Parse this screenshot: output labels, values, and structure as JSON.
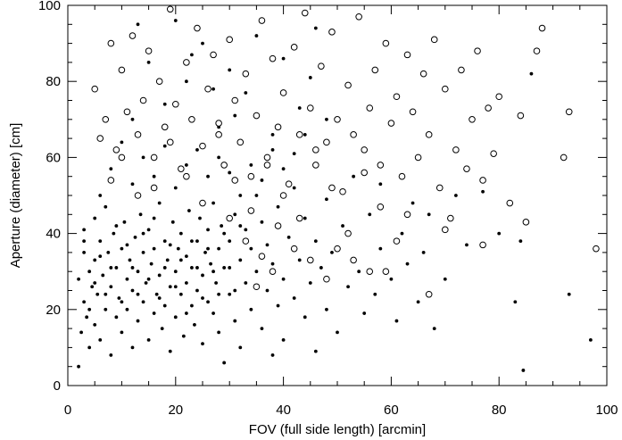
{
  "chart_data": {
    "type": "scatter",
    "xlabel": "FOV (full side length) [arcmin]",
    "ylabel": "Aperture (diameter) [cm]",
    "xlim": [
      0,
      100
    ],
    "ylim": [
      0,
      100
    ],
    "xticks": [
      0,
      20,
      40,
      60,
      80,
      100
    ],
    "yticks": [
      0,
      20,
      40,
      60,
      80,
      100
    ],
    "grid": false,
    "series": [
      {
        "marker": "filled-circle",
        "color": "#000000",
        "values": [
          [
            2,
            5
          ],
          [
            2,
            28
          ],
          [
            2.5,
            14
          ],
          [
            3,
            22
          ],
          [
            3,
            35
          ],
          [
            3,
            41
          ],
          [
            3.5,
            18
          ],
          [
            4,
            30
          ],
          [
            4,
            10
          ],
          [
            4.5,
            26
          ],
          [
            5,
            44
          ],
          [
            5,
            33
          ],
          [
            5,
            16
          ],
          [
            5.5,
            24
          ],
          [
            6,
            38
          ],
          [
            6,
            12
          ],
          [
            6.5,
            29
          ],
          [
            7,
            20
          ],
          [
            7,
            47
          ],
          [
            7.5,
            35
          ],
          [
            8,
            26
          ],
          [
            8,
            8
          ],
          [
            8.5,
            40
          ],
          [
            9,
            31
          ],
          [
            9,
            18
          ],
          [
            9.5,
            23
          ],
          [
            10,
            36
          ],
          [
            10,
            14
          ],
          [
            10.5,
            43
          ],
          [
            11,
            28
          ],
          [
            11,
            20
          ],
          [
            11.5,
            33
          ],
          [
            12,
            25
          ],
          [
            12,
            10
          ],
          [
            12.5,
            39
          ],
          [
            13,
            30
          ],
          [
            13,
            17
          ],
          [
            13.5,
            45
          ],
          [
            14,
            22
          ],
          [
            14,
            35
          ],
          [
            14.5,
            27
          ],
          [
            15,
            12
          ],
          [
            15,
            41
          ],
          [
            15.5,
            32
          ],
          [
            16,
            19
          ],
          [
            16,
            36
          ],
          [
            16.5,
            24
          ],
          [
            17,
            48
          ],
          [
            17,
            29
          ],
          [
            17.5,
            15
          ],
          [
            18,
            38
          ],
          [
            18,
            21
          ],
          [
            18.5,
            33
          ],
          [
            19,
            26
          ],
          [
            19,
            9
          ],
          [
            19.5,
            43
          ],
          [
            20,
            30
          ],
          [
            20,
            18
          ],
          [
            20.5,
            36
          ],
          [
            21,
            24
          ],
          [
            21,
            40
          ],
          [
            21.5,
            13
          ],
          [
            22,
            34
          ],
          [
            22,
            27
          ],
          [
            22.5,
            46
          ],
          [
            23,
            21
          ],
          [
            23,
            31
          ],
          [
            23.5,
            16
          ],
          [
            24,
            38
          ],
          [
            24,
            25
          ],
          [
            24.5,
            44
          ],
          [
            25,
            29
          ],
          [
            25,
            11
          ],
          [
            25.5,
            35
          ],
          [
            26,
            22
          ],
          [
            26,
            41
          ],
          [
            26.5,
            32
          ],
          [
            27,
            19
          ],
          [
            27,
            48
          ],
          [
            27.5,
            27
          ],
          [
            28,
            36
          ],
          [
            28,
            14
          ],
          [
            28.5,
            42
          ],
          [
            29,
            31
          ],
          [
            29,
            6
          ],
          [
            30,
            38
          ],
          [
            30,
            24
          ],
          [
            31,
            45
          ],
          [
            31,
            17
          ],
          [
            32,
            33
          ],
          [
            32,
            10
          ],
          [
            33,
            41
          ],
          [
            33,
            27
          ],
          [
            34,
            36
          ],
          [
            34,
            20
          ],
          [
            35,
            50
          ],
          [
            35,
            30
          ],
          [
            36,
            15
          ],
          [
            36,
            43
          ],
          [
            37,
            25
          ],
          [
            37,
            37
          ],
          [
            38,
            8
          ],
          [
            38,
            32
          ],
          [
            39,
            47
          ],
          [
            39,
            21
          ],
          [
            40,
            28
          ],
          [
            40,
            12
          ],
          [
            41,
            39
          ],
          [
            42,
            23
          ],
          [
            42,
            52
          ],
          [
            43,
            33
          ],
          [
            44,
            18
          ],
          [
            44,
            44
          ],
          [
            45,
            27
          ],
          [
            46,
            38
          ],
          [
            46,
            9
          ],
          [
            47,
            31
          ],
          [
            48,
            49
          ],
          [
            48,
            20
          ],
          [
            49,
            35
          ],
          [
            50,
            14
          ],
          [
            51,
            42
          ],
          [
            52,
            26
          ],
          [
            53,
            55
          ],
          [
            54,
            30
          ],
          [
            55,
            19
          ],
          [
            56,
            45
          ],
          [
            57,
            24
          ],
          [
            58,
            36
          ],
          [
            58,
            53
          ],
          [
            60,
            28
          ],
          [
            61,
            17
          ],
          [
            62,
            40
          ],
          [
            63,
            32
          ],
          [
            64,
            48
          ],
          [
            65,
            22
          ],
          [
            66,
            35
          ],
          [
            67,
            45
          ],
          [
            68,
            15
          ],
          [
            70,
            28
          ],
          [
            72,
            50
          ],
          [
            74,
            37
          ],
          [
            77,
            51
          ],
          [
            80,
            40
          ],
          [
            83,
            22
          ],
          [
            84,
            38
          ],
          [
            84.5,
            4
          ],
          [
            86,
            82
          ],
          [
            93,
            24
          ],
          [
            97,
            12
          ],
          [
            3,
            38
          ],
          [
            4,
            20
          ],
          [
            5,
            27
          ],
          [
            6,
            34
          ],
          [
            7,
            24
          ],
          [
            8,
            31
          ],
          [
            9,
            42
          ],
          [
            10,
            22
          ],
          [
            11,
            37
          ],
          [
            12,
            31
          ],
          [
            13,
            24
          ],
          [
            14,
            40
          ],
          [
            15,
            28
          ],
          [
            16,
            44
          ],
          [
            17,
            23
          ],
          [
            18,
            31
          ],
          [
            19,
            37
          ],
          [
            20,
            26
          ],
          [
            21,
            33
          ],
          [
            22,
            19
          ],
          [
            23,
            38
          ],
          [
            24,
            31
          ],
          [
            25,
            23
          ],
          [
            26,
            36
          ],
          [
            27,
            30
          ],
          [
            28,
            24
          ],
          [
            29,
            40
          ],
          [
            30,
            31
          ],
          [
            31,
            25
          ],
          [
            32,
            42
          ],
          [
            6,
            50
          ],
          [
            8,
            57
          ],
          [
            10,
            64
          ],
          [
            12,
            53
          ],
          [
            14,
            60
          ],
          [
            16,
            55
          ],
          [
            18,
            63
          ],
          [
            20,
            52
          ],
          [
            22,
            58
          ],
          [
            24,
            62
          ],
          [
            26,
            55
          ],
          [
            28,
            60
          ],
          [
            30,
            56
          ],
          [
            32,
            50
          ],
          [
            34,
            58
          ],
          [
            36,
            54
          ],
          [
            38,
            62
          ],
          [
            40,
            57
          ],
          [
            42,
            61
          ],
          [
            44,
            66
          ],
          [
            12,
            70
          ],
          [
            15,
            85
          ],
          [
            18,
            74
          ],
          [
            20,
            96
          ],
          [
            22,
            80
          ],
          [
            25,
            90
          ],
          [
            28,
            68
          ],
          [
            30,
            83
          ],
          [
            33,
            77
          ],
          [
            35,
            92
          ],
          [
            38,
            66
          ],
          [
            40,
            86
          ],
          [
            43,
            73
          ],
          [
            46,
            94
          ],
          [
            48,
            70
          ],
          [
            13,
            95
          ],
          [
            23,
            87
          ],
          [
            27,
            78
          ],
          [
            31,
            71
          ],
          [
            45,
            81
          ]
        ]
      },
      {
        "marker": "open-circle",
        "color": "#000000",
        "values": [
          [
            5,
            78
          ],
          [
            6,
            65
          ],
          [
            7,
            70
          ],
          [
            8,
            90
          ],
          [
            9,
            62
          ],
          [
            10,
            83
          ],
          [
            11,
            72
          ],
          [
            12,
            92
          ],
          [
            13,
            66
          ],
          [
            14,
            75
          ],
          [
            15,
            88
          ],
          [
            16,
            60
          ],
          [
            17,
            80
          ],
          [
            18,
            68
          ],
          [
            19,
            99
          ],
          [
            20,
            74
          ],
          [
            21,
            57
          ],
          [
            22,
            85
          ],
          [
            23,
            70
          ],
          [
            24,
            94
          ],
          [
            25,
            63
          ],
          [
            26,
            78
          ],
          [
            27,
            87
          ],
          [
            28,
            69
          ],
          [
            29,
            58
          ],
          [
            30,
            91
          ],
          [
            31,
            75
          ],
          [
            32,
            64
          ],
          [
            33,
            82
          ],
          [
            34,
            55
          ],
          [
            35,
            71
          ],
          [
            36,
            96
          ],
          [
            37,
            60
          ],
          [
            38,
            86
          ],
          [
            39,
            68
          ],
          [
            40,
            77
          ],
          [
            41,
            53
          ],
          [
            42,
            89
          ],
          [
            43,
            66
          ],
          [
            44,
            98
          ],
          [
            45,
            73
          ],
          [
            46,
            58
          ],
          [
            47,
            84
          ],
          [
            48,
            64
          ],
          [
            49,
            93
          ],
          [
            50,
            70
          ],
          [
            51,
            51
          ],
          [
            52,
            79
          ],
          [
            53,
            66
          ],
          [
            54,
            97
          ],
          [
            55,
            62
          ],
          [
            56,
            73
          ],
          [
            57,
            83
          ],
          [
            58,
            58
          ],
          [
            59,
            90
          ],
          [
            60,
            69
          ],
          [
            61,
            76
          ],
          [
            62,
            55
          ],
          [
            63,
            87
          ],
          [
            64,
            72
          ],
          [
            65,
            60
          ],
          [
            66,
            82
          ],
          [
            67,
            66
          ],
          [
            68,
            91
          ],
          [
            69,
            52
          ],
          [
            70,
            78
          ],
          [
            71,
            44
          ],
          [
            72,
            62
          ],
          [
            73,
            83
          ],
          [
            74,
            57
          ],
          [
            75,
            70
          ],
          [
            76,
            88
          ],
          [
            77,
            54
          ],
          [
            78,
            73
          ],
          [
            79,
            61
          ],
          [
            80,
            76
          ],
          [
            82,
            48
          ],
          [
            84,
            71
          ],
          [
            85,
            43
          ],
          [
            87,
            88
          ],
          [
            88,
            94
          ],
          [
            92,
            60
          ],
          [
            93,
            72
          ],
          [
            98,
            36
          ],
          [
            59,
            30
          ],
          [
            61,
            38
          ],
          [
            63,
            45
          ],
          [
            67,
            24
          ],
          [
            70,
            41
          ],
          [
            77,
            37
          ],
          [
            8,
            54
          ],
          [
            10,
            60
          ],
          [
            13,
            50
          ],
          [
            16,
            52
          ],
          [
            19,
            64
          ],
          [
            22,
            55
          ],
          [
            25,
            48
          ],
          [
            28,
            66
          ],
          [
            31,
            54
          ],
          [
            34,
            46
          ],
          [
            37,
            58
          ],
          [
            40,
            50
          ],
          [
            43,
            44
          ],
          [
            46,
            62
          ],
          [
            49,
            52
          ],
          [
            52,
            40
          ],
          [
            55,
            56
          ],
          [
            58,
            47
          ],
          [
            30,
            44
          ],
          [
            33,
            38
          ],
          [
            36,
            34
          ],
          [
            39,
            42
          ],
          [
            42,
            36
          ],
          [
            45,
            33
          ],
          [
            48,
            28
          ],
          [
            50,
            36
          ],
          [
            53,
            33
          ],
          [
            56,
            30
          ],
          [
            35,
            26
          ],
          [
            38,
            30
          ]
        ]
      }
    ]
  }
}
